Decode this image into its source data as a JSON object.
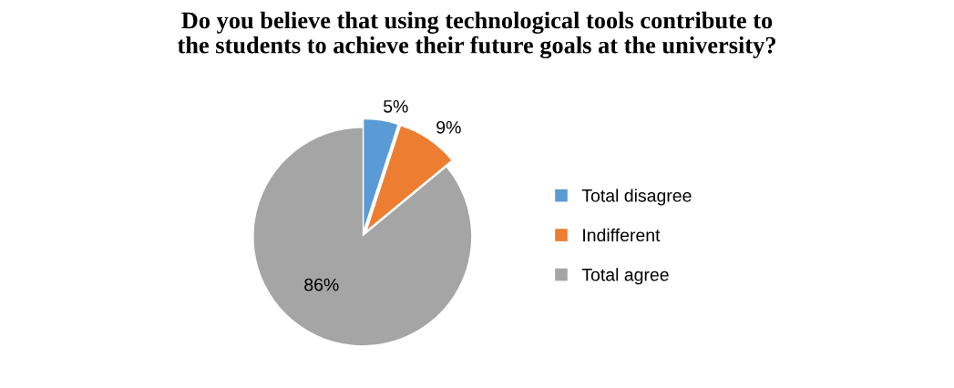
{
  "chart_data": {
    "type": "pie",
    "title": "Do you believe that using technological tools contribute to\nthe students to achieve their future goals at the university?",
    "categories": [
      "Total disagree",
      "Indifferent",
      "Total agree"
    ],
    "values": [
      5,
      9,
      86
    ],
    "colors": [
      "#5b9bd5",
      "#ed7d31",
      "#a5a5a5"
    ],
    "value_labels": [
      "5%",
      "9%",
      "86%"
    ],
    "legend": "right"
  }
}
